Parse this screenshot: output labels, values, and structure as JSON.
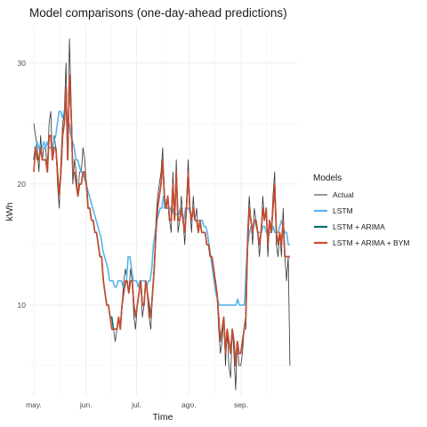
{
  "chart_data": {
    "type": "line",
    "title": "Model comparisons (one-day-ahead predictions)",
    "xlabel": "Time",
    "ylabel": "kWh",
    "x_tick_labels": [
      "may.",
      "jun.",
      "jul.",
      "ago.",
      "sep."
    ],
    "y_ticks": [
      10,
      20,
      30
    ],
    "ylim": [
      2.5,
      33
    ],
    "grid": true,
    "legend": {
      "title": "Models",
      "position": "right"
    },
    "x_dates_start": "2021-05-01",
    "x_dates_end": "2021-09-30",
    "series": [
      {
        "name": "Actual",
        "color": "#333333",
        "values": [
          25,
          24,
          23,
          21,
          24,
          22,
          23,
          23,
          21,
          25,
          26,
          22,
          24,
          23,
          20,
          18,
          22,
          25,
          26,
          30,
          22,
          32,
          27,
          20,
          22,
          21,
          19,
          21,
          21,
          23,
          22,
          20,
          18,
          18,
          17,
          17,
          16,
          16,
          15,
          14,
          14,
          12,
          11,
          10,
          10,
          9,
          8,
          8,
          7,
          8,
          9,
          8,
          10,
          12,
          13,
          12,
          11,
          13,
          12,
          9,
          8,
          10,
          11,
          12,
          9,
          10,
          12,
          11,
          9,
          8,
          11,
          13,
          17,
          19,
          20,
          21,
          23,
          18,
          18,
          19,
          17,
          16,
          21,
          17,
          22,
          16,
          17,
          19,
          17,
          15,
          18,
          22,
          18,
          16,
          19,
          17,
          18,
          16,
          17,
          16,
          16,
          16,
          15,
          15,
          14,
          14,
          13,
          12,
          11,
          8,
          6,
          7,
          9,
          5,
          8,
          5,
          4,
          8,
          6,
          3,
          7,
          5,
          5,
          6,
          8,
          8,
          16,
          19,
          17,
          15,
          18,
          17,
          16,
          14,
          16,
          19,
          17,
          18,
          14,
          17,
          16,
          19,
          21,
          15,
          14,
          16,
          14,
          18,
          14,
          12,
          14,
          5
        ]
      },
      {
        "name": "LSTM",
        "color": "#56b4e9",
        "values": [
          23,
          23,
          23.5,
          23,
          22.5,
          23,
          23.5,
          23,
          23.5,
          23,
          23,
          23,
          23.5,
          24,
          25,
          26,
          26,
          25.5,
          26,
          26.5,
          25,
          25,
          24,
          23.5,
          23,
          22,
          22,
          21.5,
          21,
          21,
          20.5,
          20,
          19.5,
          19,
          18.5,
          18,
          17.5,
          17,
          16.5,
          16,
          15.5,
          14.5,
          14,
          13.5,
          13,
          12,
          12,
          12,
          11.5,
          11.5,
          12,
          12,
          12,
          11.5,
          11.5,
          12,
          14,
          14,
          13,
          12,
          12,
          12,
          11.5,
          12,
          12,
          12,
          12,
          11.5,
          12,
          12,
          13,
          15,
          16,
          17,
          17.5,
          18,
          18,
          19,
          18,
          18,
          18,
          18,
          17.5,
          18,
          17.5,
          17.5,
          17.5,
          18,
          17.5,
          17,
          18,
          18,
          18,
          17.5,
          17.5,
          17.5,
          17,
          17,
          17,
          17,
          17,
          16.5,
          16.5,
          16,
          15,
          14,
          13,
          12,
          11,
          10.5,
          10,
          10,
          10,
          10,
          10,
          10,
          10,
          10,
          10,
          10,
          10,
          10.5,
          10,
          10,
          10,
          10,
          13,
          15,
          16,
          16.5,
          16.5,
          17,
          16.5,
          16,
          16,
          16,
          16.5,
          16.5,
          16,
          16,
          16,
          16,
          16.5,
          16,
          16,
          16,
          16.5,
          17,
          16.5,
          16,
          16,
          15,
          15
        ]
      },
      {
        "name": "LSTM + ARIMA",
        "color": "#006d6f",
        "values": [
          22,
          23,
          22,
          22,
          23,
          22,
          22,
          22,
          21,
          24,
          24,
          22,
          23,
          23,
          21,
          19,
          21,
          24,
          25,
          28,
          22,
          29,
          26,
          21,
          21,
          20,
          19,
          20,
          20,
          21,
          21,
          20,
          18,
          18,
          17,
          17,
          16,
          16,
          15,
          14,
          14,
          12,
          11,
          10,
          10,
          9,
          9,
          8,
          8,
          8,
          9,
          8,
          10,
          11,
          12,
          12,
          11,
          12,
          12,
          10,
          9,
          10,
          11,
          12,
          10,
          10,
          12,
          11,
          10,
          9,
          11,
          13,
          16,
          18,
          19,
          20,
          22,
          19,
          18,
          19,
          17,
          17,
          20,
          17,
          21,
          17,
          17,
          18,
          17,
          16,
          18,
          21,
          18,
          17,
          18,
          17,
          17,
          16,
          17,
          16,
          16,
          16,
          15,
          15,
          14,
          14,
          13,
          12,
          11,
          9,
          7,
          8,
          9,
          6,
          8,
          7,
          6,
          8,
          7,
          5,
          7,
          6,
          6,
          7,
          8,
          9,
          15,
          18,
          17,
          16,
          17,
          17,
          16,
          15,
          16,
          18,
          17,
          18,
          15,
          17,
          16,
          18,
          20,
          16,
          15,
          16,
          15,
          17,
          14,
          14,
          14,
          14
        ]
      },
      {
        "name": "LSTM + ARIMA + BYM",
        "color": "#cc4a2e",
        "values": [
          21,
          23,
          22,
          22,
          23,
          22,
          22,
          22,
          21,
          24,
          24,
          22,
          23,
          23,
          21,
          19,
          21,
          24,
          25,
          28,
          22,
          29,
          26,
          21,
          21,
          20,
          19,
          20,
          20,
          21,
          21,
          20,
          18,
          18,
          17,
          17,
          16,
          16,
          15,
          14,
          14,
          12,
          11,
          10,
          10,
          9,
          8,
          8,
          8,
          8,
          9,
          8,
          10,
          11,
          12,
          12,
          11,
          12,
          12,
          10,
          9,
          10,
          11,
          12,
          10,
          10,
          12,
          11,
          9,
          9,
          11,
          13,
          16,
          18,
          19,
          20,
          22,
          19,
          18,
          19,
          17,
          17,
          20,
          17,
          21,
          17,
          17,
          18,
          17,
          16,
          18,
          21,
          18,
          17,
          18,
          17,
          17,
          16,
          17,
          16,
          16,
          16,
          15,
          15,
          14,
          14,
          13,
          12,
          11,
          9,
          7,
          8,
          9,
          6,
          8,
          7,
          6,
          8,
          7,
          5,
          7,
          6,
          6,
          7,
          8,
          9,
          15,
          18,
          17,
          16,
          17,
          17,
          16,
          15,
          16,
          18,
          17,
          18,
          15,
          17,
          16,
          18,
          20,
          16,
          15,
          16,
          15,
          17,
          14,
          14,
          14,
          14
        ]
      }
    ]
  }
}
